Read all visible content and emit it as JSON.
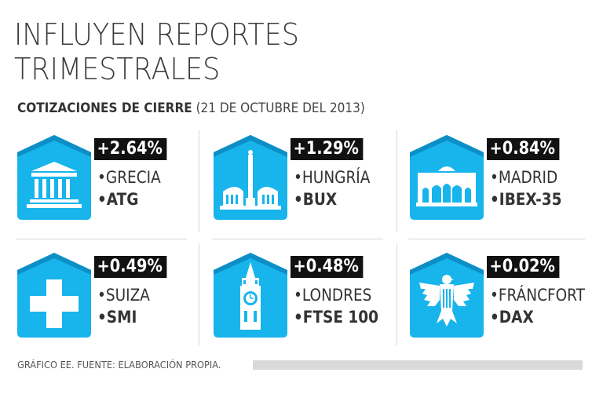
{
  "title": {
    "line1": "INFLUYEN REPORTES",
    "line2": "TRIMESTRALES"
  },
  "subtitle": {
    "label": "COTIZACIONES DE CIERRE",
    "date": "(21 DE OCTUBRE DEL 2013)"
  },
  "colors": {
    "badge": "#18b4ec",
    "badge_dark": "#0c8fc6",
    "change_bg": "#111111"
  },
  "markets": [
    {
      "change": "+2.64%",
      "country": "•GRECIA",
      "index": "•ATG",
      "icon": "parthenon-icon"
    },
    {
      "change": "+1.29%",
      "country": "•HUNGRÍA",
      "index": "•BUX",
      "icon": "heroes-square-icon"
    },
    {
      "change": "+0.84%",
      "country": "•MADRID",
      "index": "•IBEX-35",
      "icon": "alcala-gate-icon"
    },
    {
      "change": "+0.49%",
      "country": "•SUIZA",
      "index": "•SMI",
      "icon": "swiss-cross-icon"
    },
    {
      "change": "+0.48%",
      "country": "•LONDRES",
      "index": "•FTSE 100",
      "icon": "big-ben-icon"
    },
    {
      "change": "+0.02%",
      "country": "•FRÁNCFORT",
      "index": "•DAX",
      "icon": "german-eagle-icon"
    }
  ],
  "footer": {
    "source": "GRÁFICO EE. FUENTE: ELABORACIÓN PROPIA."
  }
}
